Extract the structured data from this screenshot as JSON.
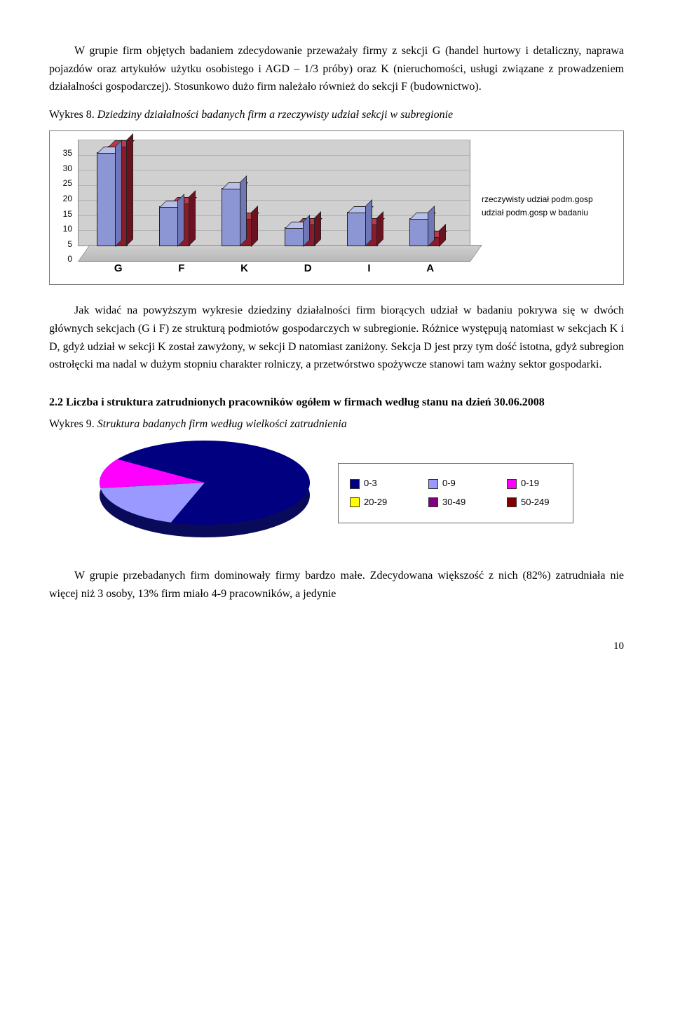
{
  "para1": "W grupie firm objętych badaniem zdecydowanie przeważały firmy z sekcji G (handel hurtowy i detaliczny, naprawa pojazdów oraz artykułów użytku osobistego i AGD – 1/3 próby) oraz K (nieruchomości, usługi związane z prowadzeniem działalności gospodarczej). Stosunkowo dużo firm należało również do sekcji F (budownictwo).",
  "wykres8_lead": "Wykres 8.",
  "wykres8_rest": " Dziedziny działalności badanych firm  a rzeczywisty udział sekcji w subregionie",
  "bar_chart": {
    "categories": [
      "G",
      "F",
      "K",
      "D",
      "I",
      "A"
    ],
    "series_back": {
      "label": "rzeczywisty udział podm.gosp",
      "color": "#8b1a2b",
      "top": "#b83a4c",
      "side": "#6a1220",
      "values": [
        33,
        14,
        9,
        7,
        7,
        3
      ]
    },
    "series_front": {
      "label": "udział podm.gosp w badaniu",
      "color": "#8c96d4",
      "top": "#b8bfe8",
      "side": "#6e78b8",
      "values": [
        31,
        13,
        19,
        6,
        11,
        9
      ]
    },
    "ylim": [
      0,
      35
    ],
    "ytick_step": 5,
    "wall_color": "#d0d0d0",
    "grid_color": "#b2b2b2",
    "label_fontsize": 12,
    "category_fontsize": 15
  },
  "para2": "Jak widać na powyższym wykresie dziedziny działalności firm biorących udział w badaniu pokrywa się w dwóch głównych sekcjach (G i F) ze strukturą podmiotów gospodarczych w subregionie. Różnice występują natomiast w sekcjach K i D, gdyż udział w sekcji K został zawyżony, w sekcji D natomiast zaniżony. Sekcja D jest przy tym dość istotna, gdyż subregion ostrołęcki ma nadal w dużym stopniu charakter rolniczy, a przetwórstwo spożywcze stanowi tam ważny sektor gospodarki.",
  "sec22": "2.2 Liczba i struktura zatrudnionych pracowników ogółem w firmach według stanu na dzień 30.06.2008",
  "wykres9_lead": "Wykres 9.",
  "wykres9_rest": " Struktura badanych firm według wielkości zatrudnienia",
  "pie": {
    "slices": [
      {
        "label": "0-3",
        "color": "#000080",
        "value": 82
      },
      {
        "label": "0-9",
        "color": "#9999ff",
        "value": 13
      },
      {
        "label": "0-19",
        "color": "#ff00ff",
        "value": 5
      },
      {
        "label": "20-29",
        "color": "#ffff00",
        "value": 0
      },
      {
        "label": "30-49",
        "color": "#800080",
        "value": 0
      },
      {
        "label": "50-249",
        "color": "#800000",
        "value": 0
      }
    ],
    "side_color": "#0a0a5a"
  },
  "para3": "W grupie przebadanych firm dominowały firmy bardzo małe. Zdecydowana większość z nich (82%) zatrudniała nie więcej niż 3 osoby, 13%  firm miało 4-9 pracowników, a jedynie",
  "page_no": "10"
}
